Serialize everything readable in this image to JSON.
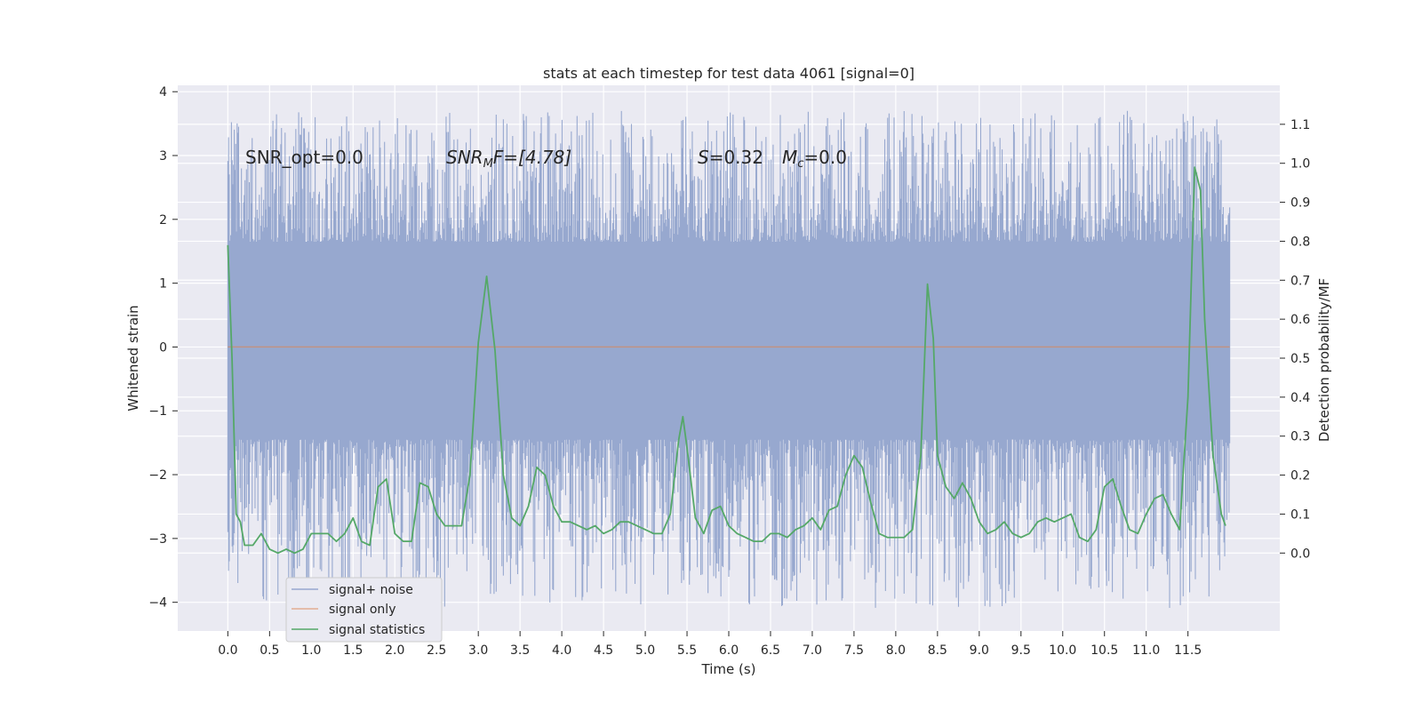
{
  "chart_data": {
    "type": "line",
    "title": "stats at each timestep for test data 4061 [signal=0]",
    "xlabel": "Time (s)",
    "ylabel": "Whitened strain",
    "ylabel_right": "Detection probability/MF",
    "xlim": [
      -0.6,
      12.6
    ],
    "ylim": [
      -4.45,
      4.1
    ],
    "ylim_right": [
      -0.2,
      1.2
    ],
    "x_ticks": [
      "0.0",
      "0.5",
      "1.0",
      "1.5",
      "2.0",
      "2.5",
      "3.0",
      "3.5",
      "4.0",
      "4.5",
      "5.0",
      "5.5",
      "6.0",
      "6.5",
      "7.0",
      "7.5",
      "8.0",
      "8.5",
      "9.0",
      "9.5",
      "10.0",
      "10.5",
      "11.0",
      "11.5"
    ],
    "y_ticks": [
      "4",
      "3",
      "2",
      "1",
      "0",
      "−1",
      "−2",
      "−3",
      "−4"
    ],
    "y_ticks_right": [
      "1.1",
      "1.0",
      "0.9",
      "0.8",
      "0.7",
      "0.6",
      "0.5",
      "0.4",
      "0.3",
      "0.2",
      "0.1",
      "0.0"
    ],
    "grid": true,
    "legend_position": "lower-left",
    "annotations": {
      "snr_opt": "SNR_opt=0.0",
      "snr_mf_main": "SNR",
      "snr_mf_sub": "M",
      "snr_mf_rest": "F=[4.78]",
      "s_main": "S",
      "s_rest": "=0.32",
      "mc_main": "M",
      "mc_sub": "c",
      "mc_rest": "=0.0"
    },
    "series": [
      {
        "name": "signal+ noise",
        "color": "#97a8cf",
        "axis": "left",
        "time_range": [
          0.0,
          12.0
        ],
        "envelope_max": 3.7,
        "envelope_min": -4.1,
        "typical_range": [
          -1.45,
          1.65
        ]
      },
      {
        "name": "signal only",
        "color": "#dd8452",
        "axis": "left",
        "x": [
          0.0,
          12.0
        ],
        "y": [
          0.0,
          0.0
        ]
      },
      {
        "name": "signal statistics",
        "color": "#55a868",
        "axis": "right",
        "x": [
          0.0,
          0.05,
          0.1,
          0.15,
          0.2,
          0.3,
          0.4,
          0.5,
          0.6,
          0.7,
          0.8,
          0.9,
          1.0,
          1.1,
          1.2,
          1.3,
          1.4,
          1.5,
          1.6,
          1.7,
          1.8,
          1.9,
          2.0,
          2.1,
          2.2,
          2.3,
          2.4,
          2.5,
          2.6,
          2.7,
          2.8,
          2.9,
          3.0,
          3.1,
          3.2,
          3.3,
          3.4,
          3.5,
          3.6,
          3.7,
          3.8,
          3.9,
          4.0,
          4.1,
          4.2,
          4.3,
          4.4,
          4.5,
          4.6,
          4.7,
          4.8,
          4.9,
          5.0,
          5.1,
          5.2,
          5.3,
          5.4,
          5.45,
          5.5,
          5.6,
          5.7,
          5.8,
          5.9,
          6.0,
          6.1,
          6.2,
          6.3,
          6.4,
          6.5,
          6.6,
          6.7,
          6.8,
          6.9,
          7.0,
          7.1,
          7.2,
          7.3,
          7.4,
          7.5,
          7.6,
          7.7,
          7.8,
          7.9,
          8.0,
          8.1,
          8.2,
          8.3,
          8.38,
          8.45,
          8.5,
          8.6,
          8.7,
          8.8,
          8.9,
          9.0,
          9.1,
          9.2,
          9.3,
          9.4,
          9.5,
          9.6,
          9.7,
          9.8,
          9.9,
          10.0,
          10.1,
          10.2,
          10.3,
          10.4,
          10.5,
          10.6,
          10.7,
          10.8,
          10.9,
          11.0,
          11.1,
          11.2,
          11.3,
          11.4,
          11.5,
          11.58,
          11.65,
          11.7,
          11.8,
          11.9,
          11.95
        ],
        "y": [
          0.79,
          0.5,
          0.1,
          0.08,
          0.02,
          0.02,
          0.05,
          0.01,
          0.0,
          0.01,
          0.0,
          0.01,
          0.05,
          0.05,
          0.05,
          0.03,
          0.05,
          0.09,
          0.03,
          0.02,
          0.17,
          0.19,
          0.05,
          0.03,
          0.03,
          0.18,
          0.17,
          0.1,
          0.07,
          0.07,
          0.07,
          0.2,
          0.54,
          0.71,
          0.52,
          0.2,
          0.09,
          0.07,
          0.12,
          0.22,
          0.2,
          0.12,
          0.08,
          0.08,
          0.07,
          0.06,
          0.07,
          0.05,
          0.06,
          0.08,
          0.08,
          0.07,
          0.06,
          0.05,
          0.05,
          0.1,
          0.29,
          0.35,
          0.27,
          0.09,
          0.05,
          0.11,
          0.12,
          0.07,
          0.05,
          0.04,
          0.03,
          0.03,
          0.05,
          0.05,
          0.04,
          0.06,
          0.07,
          0.09,
          0.06,
          0.11,
          0.12,
          0.2,
          0.25,
          0.22,
          0.13,
          0.05,
          0.04,
          0.04,
          0.04,
          0.06,
          0.25,
          0.69,
          0.55,
          0.25,
          0.17,
          0.14,
          0.18,
          0.14,
          0.08,
          0.05,
          0.06,
          0.08,
          0.05,
          0.04,
          0.05,
          0.08,
          0.09,
          0.08,
          0.09,
          0.1,
          0.04,
          0.03,
          0.06,
          0.17,
          0.19,
          0.12,
          0.06,
          0.05,
          0.1,
          0.14,
          0.15,
          0.1,
          0.06,
          0.4,
          0.99,
          0.93,
          0.6,
          0.25,
          0.1,
          0.07
        ]
      }
    ]
  }
}
